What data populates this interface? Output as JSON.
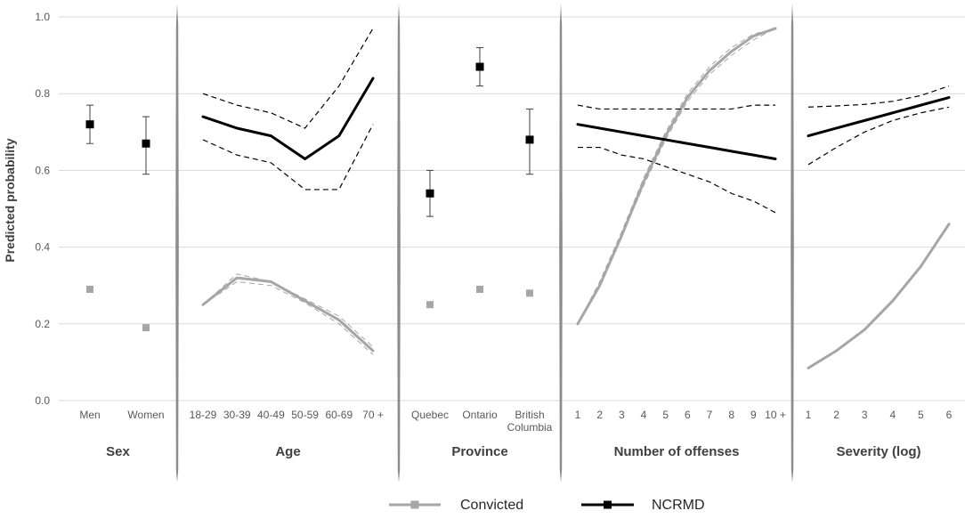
{
  "chart_data": {
    "type": "line",
    "ylabel": "Predicted probability",
    "ylim": [
      0,
      1
    ],
    "yticks": [
      "0.0",
      "0.2",
      "0.4",
      "0.6",
      "0.8",
      "1.0"
    ],
    "grid": true,
    "legend": {
      "placement": "bottom-center",
      "entries": [
        {
          "name": "Convicted",
          "color": "#a6a6a6"
        },
        {
          "name": "NCRMD",
          "color": "#000000"
        }
      ]
    },
    "panels": [
      {
        "title": "Sex",
        "kind": "points",
        "categories": [
          "Men",
          "Women"
        ],
        "series": [
          {
            "name": "Convicted",
            "values": [
              0.29,
              0.19
            ],
            "color": "#a6a6a6"
          },
          {
            "name": "NCRMD",
            "values": [
              0.72,
              0.67
            ],
            "lower": [
              0.67,
              0.59
            ],
            "upper": [
              0.77,
              0.74
            ],
            "color": "#000000"
          }
        ]
      },
      {
        "title": "Age",
        "kind": "lines",
        "categories": [
          "18-29",
          "30-39",
          "40-49",
          "50-59",
          "60-69",
          "70 +"
        ],
        "series": [
          {
            "name": "Convicted",
            "values": [
              0.25,
              0.32,
              0.31,
              0.26,
              0.21,
              0.13
            ],
            "lower": [
              0.25,
              0.31,
              0.3,
              0.255,
              0.2,
              0.12
            ],
            "upper": [
              0.25,
              0.33,
              0.31,
              0.265,
              0.22,
              0.14
            ],
            "color": "#a6a6a6"
          },
          {
            "name": "NCRMD",
            "values": [
              0.74,
              0.71,
              0.69,
              0.63,
              0.69,
              0.84
            ],
            "lower": [
              0.68,
              0.64,
              0.62,
              0.55,
              0.55,
              0.72
            ],
            "upper": [
              0.8,
              0.77,
              0.75,
              0.71,
              0.82,
              0.97
            ],
            "color": "#000000"
          }
        ]
      },
      {
        "title": "Province",
        "kind": "points",
        "categories": [
          "Quebec",
          "Ontario",
          "British Columbia"
        ],
        "category_lines": [
          [
            "Quebec"
          ],
          [
            "Ontario"
          ],
          [
            "British",
            "Columbia"
          ]
        ],
        "series": [
          {
            "name": "Convicted",
            "values": [
              0.25,
              0.29,
              0.28
            ],
            "color": "#a6a6a6"
          },
          {
            "name": "NCRMD",
            "values": [
              0.54,
              0.87,
              0.68
            ],
            "lower": [
              0.48,
              0.82,
              0.59
            ],
            "upper": [
              0.6,
              0.92,
              0.76
            ],
            "color": "#000000"
          }
        ]
      },
      {
        "title": "Number of offenses",
        "kind": "lines",
        "categories": [
          "1",
          "2",
          "3",
          "4",
          "5",
          "6",
          "7",
          "8",
          "9",
          "10 +"
        ],
        "series": [
          {
            "name": "Convicted",
            "values": [
              0.2,
              0.3,
              0.43,
              0.57,
              0.69,
              0.79,
              0.86,
              0.91,
              0.95,
              0.97
            ],
            "lower": [
              0.2,
              0.3,
              0.43,
              0.56,
              0.68,
              0.78,
              0.85,
              0.9,
              0.94,
              0.97
            ],
            "upper": [
              0.2,
              0.31,
              0.44,
              0.58,
              0.7,
              0.8,
              0.87,
              0.92,
              0.955,
              0.97
            ],
            "color": "#a6a6a6"
          },
          {
            "name": "NCRMD",
            "values": [
              0.72,
              0.71,
              0.7,
              0.69,
              0.68,
              0.67,
              0.66,
              0.65,
              0.64,
              0.63
            ],
            "lower": [
              0.66,
              0.66,
              0.64,
              0.63,
              0.61,
              0.59,
              0.57,
              0.54,
              0.52,
              0.49
            ],
            "upper": [
              0.77,
              0.76,
              0.76,
              0.76,
              0.76,
              0.76,
              0.76,
              0.76,
              0.77,
              0.77
            ],
            "color": "#000000"
          }
        ]
      },
      {
        "title": "Severity (log)",
        "kind": "lines",
        "categories": [
          "1",
          "2",
          "3",
          "4",
          "5",
          "6"
        ],
        "series": [
          {
            "name": "Convicted",
            "values": [
              0.085,
              0.13,
              0.185,
              0.26,
              0.35,
              0.46
            ],
            "color": "#a6a6a6"
          },
          {
            "name": "NCRMD",
            "values": [
              0.69,
              0.71,
              0.73,
              0.75,
              0.77,
              0.79
            ],
            "lower": [
              0.615,
              0.66,
              0.7,
              0.73,
              0.75,
              0.765
            ],
            "upper": [
              0.765,
              0.768,
              0.772,
              0.78,
              0.795,
              0.82
            ],
            "color": "#000000"
          }
        ]
      }
    ]
  }
}
